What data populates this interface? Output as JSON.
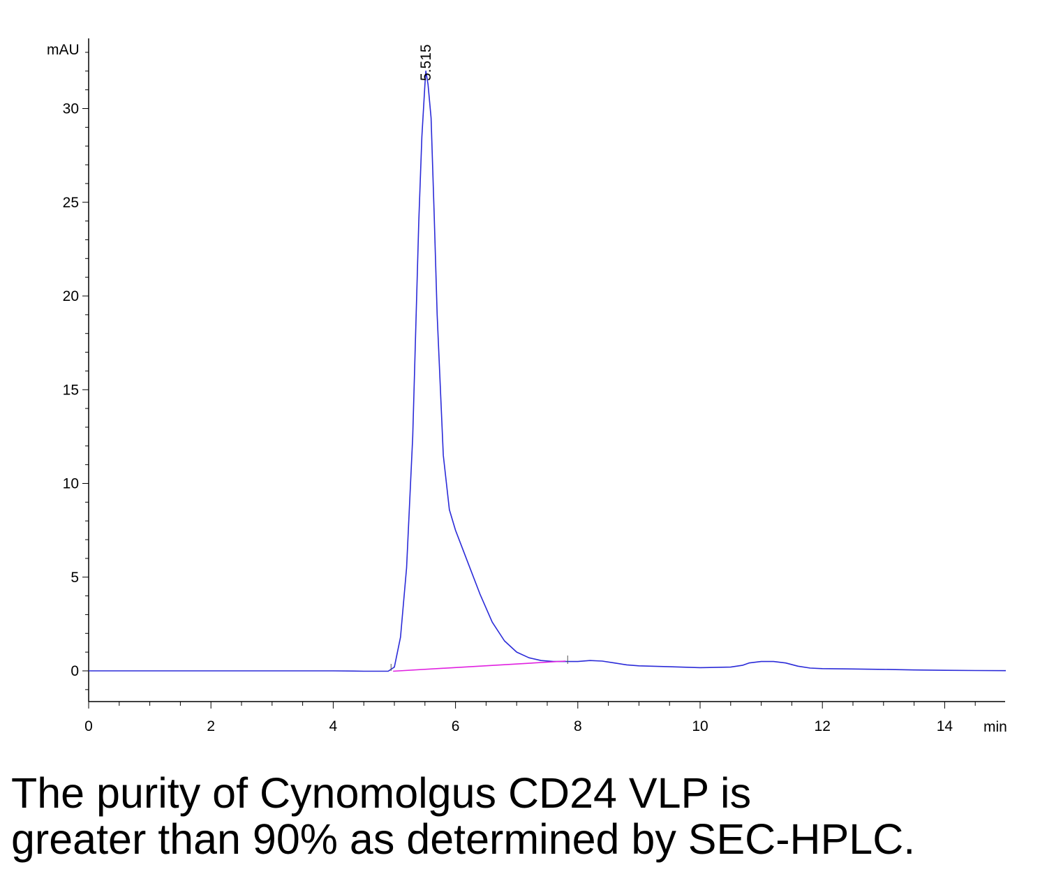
{
  "chart_data": {
    "type": "line",
    "y_unit": "mAU",
    "x_unit": "min",
    "xlim": [
      0,
      15
    ],
    "ylim": [
      -1.7,
      33
    ],
    "x_ticks": [
      0,
      2,
      4,
      6,
      8,
      10,
      12,
      14
    ],
    "y_ticks": [
      0,
      5,
      10,
      15,
      20,
      25,
      30
    ],
    "grid": false,
    "peak_annotation": {
      "label": "5.515",
      "x": 5.515,
      "y": 32.0
    },
    "series": [
      {
        "color": "#2a2ad8",
        "x": [
          0,
          1,
          2,
          3,
          4,
          4.5,
          4.9,
          5.0,
          5.1,
          5.2,
          5.3,
          5.4,
          5.45,
          5.5,
          5.515,
          5.55,
          5.6,
          5.65,
          5.7,
          5.8,
          5.9,
          6.0,
          6.2,
          6.4,
          6.6,
          6.8,
          7.0,
          7.2,
          7.4,
          7.6,
          7.8,
          8.0,
          8.2,
          8.4,
          8.6,
          8.8,
          9.0,
          9.5,
          10.0,
          10.5,
          10.7,
          10.8,
          11.0,
          11.2,
          11.4,
          11.6,
          11.8,
          12.0,
          12.5,
          13.0,
          13.5,
          14.0,
          14.5,
          15.0
        ],
        "y": [
          0,
          0,
          0,
          0,
          0,
          -0.02,
          -0.02,
          0.2,
          1.8,
          5.5,
          12.5,
          24.0,
          28.5,
          31.3,
          32.0,
          31.3,
          29.5,
          24.5,
          19.0,
          11.5,
          8.6,
          7.5,
          5.8,
          4.1,
          2.6,
          1.6,
          1.0,
          0.7,
          0.55,
          0.5,
          0.5,
          0.5,
          0.55,
          0.52,
          0.42,
          0.32,
          0.27,
          0.22,
          0.17,
          0.2,
          0.3,
          0.42,
          0.5,
          0.5,
          0.42,
          0.25,
          0.15,
          0.12,
          0.1,
          0.08,
          0.05,
          0.03,
          0.02,
          0.01
        ]
      },
      {
        "color": "#e020e0",
        "x": [
          4.98,
          7.8
        ],
        "y": [
          -0.02,
          0.52
        ]
      }
    ]
  },
  "caption": {
    "line1": "The purity of Cynomolgus CD24 VLP is",
    "line2": "greater than 90% as determined by SEC-HPLC."
  }
}
